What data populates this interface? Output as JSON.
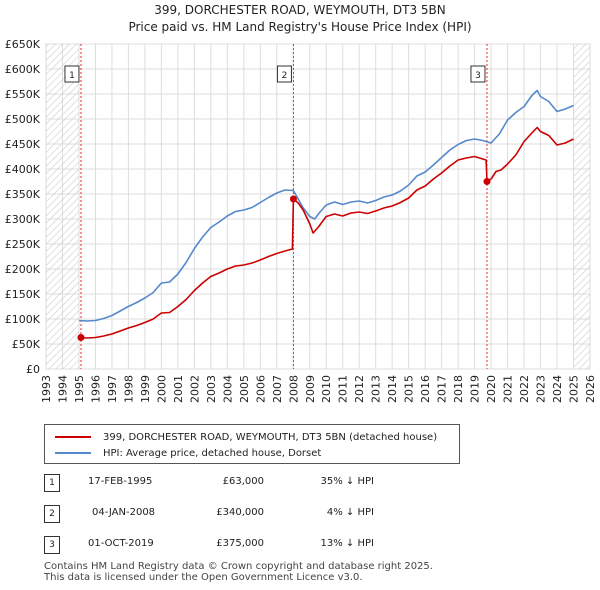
{
  "chart_data": {
    "type": "line",
    "title": "399, DORCHESTER ROAD, WEYMOUTH, DT3 5BN",
    "subtitle": "Price paid vs. HM Land Registry's House Price Index (HPI)",
    "y_ticks": [
      "£0",
      "£50K",
      "£100K",
      "£150K",
      "£200K",
      "£250K",
      "£300K",
      "£350K",
      "£400K",
      "£450K",
      "£500K",
      "£550K",
      "£600K",
      "£650K"
    ],
    "x_ticks": [
      "1993",
      "1994",
      "1995",
      "1996",
      "1997",
      "1998",
      "1999",
      "2000",
      "2001",
      "2002",
      "2003",
      "2004",
      "2005",
      "2006",
      "2007",
      "2008",
      "2009",
      "2010",
      "2011",
      "2012",
      "2013",
      "2014",
      "2015",
      "2016",
      "2017",
      "2018",
      "2019",
      "2020",
      "2021",
      "2022",
      "2023",
      "2024",
      "2025",
      "2026"
    ],
    "xlim": [
      1993,
      2026
    ],
    "ylim": [
      0,
      650000
    ],
    "series": [
      {
        "name": "399, DORCHESTER ROAD, WEYMOUTH, DT3 5BN (detached house)",
        "color": "#cc0000",
        "x": [
          1995.12,
          1995.5,
          1996,
          1996.5,
          1997,
          1997.5,
          1998,
          1998.5,
          1999,
          1999.5,
          2000,
          2000.5,
          2001,
          2001.5,
          2002,
          2002.5,
          2003,
          2003.5,
          2004,
          2004.5,
          2005,
          2005.5,
          2006,
          2006.5,
          2007,
          2007.5,
          2007.95,
          2008.01,
          2008.3,
          2008.6,
          2009,
          2009.2,
          2009.5,
          2010,
          2010.5,
          2011,
          2011.5,
          2012,
          2012.5,
          2013,
          2013.5,
          2014,
          2014.5,
          2015,
          2015.5,
          2016,
          2016.5,
          2017,
          2017.5,
          2018,
          2018.5,
          2019,
          2019.5,
          2019.7,
          2019.75,
          2020,
          2020.3,
          2020.6,
          2021,
          2021.5,
          2022,
          2022.5,
          2022.8,
          2023,
          2023.5,
          2024,
          2024.5,
          2025
        ],
        "y": [
          63000,
          62000,
          63000,
          66000,
          70000,
          76000,
          82000,
          87000,
          93000,
          100000,
          112000,
          113000,
          125000,
          139000,
          157000,
          172000,
          185000,
          192000,
          200000,
          206000,
          208000,
          212000,
          218000,
          225000,
          231000,
          236000,
          240000,
          340000,
          332000,
          318000,
          290000,
          272000,
          283000,
          305000,
          310000,
          306000,
          312000,
          314000,
          311000,
          316000,
          322000,
          326000,
          333000,
          342000,
          358000,
          366000,
          380000,
          392000,
          406000,
          418000,
          422000,
          425000,
          420000,
          418000,
          375000,
          380000,
          395000,
          398000,
          410000,
          428000,
          455000,
          473000,
          483000,
          475000,
          467000,
          448000,
          452000,
          460000
        ]
      },
      {
        "name": "HPI: Average price, detached house, Dorset",
        "color": "#5588cc",
        "x": [
          1995,
          1995.5,
          1996,
          1996.5,
          1997,
          1997.5,
          1998,
          1998.5,
          1999,
          1999.5,
          2000,
          2000.5,
          2001,
          2001.5,
          2002,
          2002.5,
          2003,
          2003.5,
          2004,
          2004.5,
          2005,
          2005.5,
          2006,
          2006.5,
          2007,
          2007.5,
          2008,
          2008.3,
          2008.6,
          2009,
          2009.3,
          2009.6,
          2010,
          2010.5,
          2011,
          2011.5,
          2012,
          2012.5,
          2013,
          2013.5,
          2014,
          2014.5,
          2015,
          2015.5,
          2016,
          2016.5,
          2017,
          2017.5,
          2018,
          2018.5,
          2019,
          2019.5,
          2020,
          2020.5,
          2021,
          2021.5,
          2022,
          2022.5,
          2022.8,
          2023,
          2023.5,
          2024,
          2024.5,
          2025
        ],
        "y": [
          97000,
          96000,
          97000,
          101000,
          107000,
          116000,
          125000,
          133000,
          142000,
          153000,
          172000,
          174000,
          190000,
          213000,
          241000,
          264000,
          283000,
          294000,
          306000,
          315000,
          318000,
          323000,
          333000,
          343000,
          352000,
          358000,
          357000,
          340000,
          322000,
          305000,
          300000,
          313000,
          328000,
          334000,
          329000,
          334000,
          336000,
          332000,
          337000,
          344000,
          348000,
          356000,
          368000,
          386000,
          394000,
          408000,
          423000,
          438000,
          449000,
          457000,
          460000,
          457000,
          452000,
          470000,
          498000,
          513000,
          525000,
          548000,
          557000,
          545000,
          535000,
          515000,
          520000,
          527000
        ]
      }
    ],
    "markers": [
      {
        "label": "1",
        "x": 1995.12,
        "y": 63000
      },
      {
        "label": "2",
        "x": 2008.01,
        "y": 340000
      },
      {
        "label": "3",
        "x": 2019.75,
        "y": 375000
      }
    ],
    "hatch_ranges": [
      [
        1993,
        1995.0
      ],
      [
        2025.0,
        2026
      ]
    ]
  },
  "legend": {
    "property": "399, DORCHESTER ROAD, WEYMOUTH, DT3 5BN (detached house)",
    "hpi": "HPI: Average price, detached house, Dorset"
  },
  "transactions": [
    {
      "num": "1",
      "date": "17-FEB-1995",
      "price": "£63,000",
      "hpi": "35% ↓ HPI"
    },
    {
      "num": "2",
      "date": "04-JAN-2008",
      "price": "£340,000",
      "hpi": "4% ↓ HPI"
    },
    {
      "num": "3",
      "date": "01-OCT-2019",
      "price": "£375,000",
      "hpi": "13% ↓ HPI"
    }
  ],
  "footer": {
    "line1": "Contains HM Land Registry data © Crown copyright and database right 2025.",
    "line2": "This data is licensed under the Open Government Licence v3.0."
  }
}
